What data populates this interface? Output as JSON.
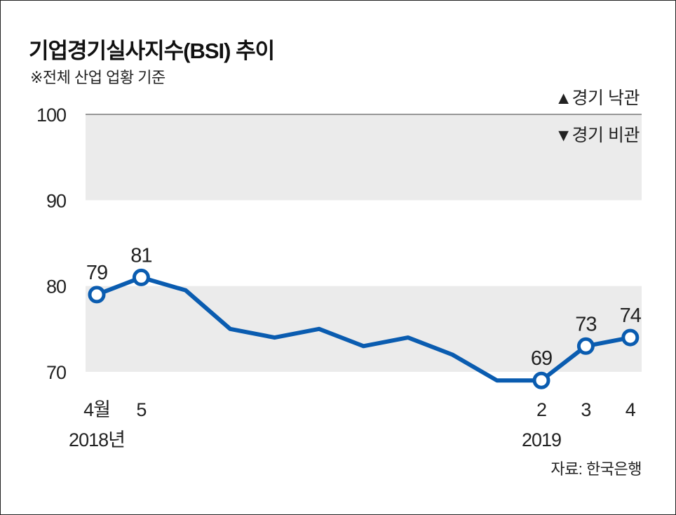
{
  "title": "기업경기실사지수(BSI) 추이",
  "subtitle": "※전체 산업 업황 기준",
  "source": "자료: 한국은행",
  "colors": {
    "line": "#0a5cb0",
    "band": "#ebebeb",
    "marker_fill": "#ffffff"
  },
  "chart_data": {
    "type": "line",
    "ylim": [
      70,
      100
    ],
    "yticks": [
      70,
      80,
      90,
      100
    ],
    "x": [
      "2018-04",
      "2018-05",
      "2018-06",
      "2018-07",
      "2018-08",
      "2018-09",
      "2018-10",
      "2018-11",
      "2018-12",
      "2019-01",
      "2019-02",
      "2019-03",
      "2019-04"
    ],
    "series": [
      {
        "values": [
          79,
          81,
          79.5,
          75,
          74,
          75,
          73,
          74,
          72,
          69,
          69,
          73,
          74
        ]
      }
    ],
    "x_tick_labels": [
      {
        "index": 0,
        "label": "4월",
        "year": "2018년"
      },
      {
        "index": 1,
        "label": "5",
        "year": ""
      },
      {
        "index": 10,
        "label": "2",
        "year": "2019"
      },
      {
        "index": 11,
        "label": "3",
        "year": ""
      },
      {
        "index": 12,
        "label": "4",
        "year": ""
      }
    ],
    "data_labels": [
      {
        "index": 0,
        "text": "79"
      },
      {
        "index": 1,
        "text": "81"
      },
      {
        "index": 10,
        "text": "69"
      },
      {
        "index": 11,
        "text": "73"
      },
      {
        "index": 12,
        "text": "74"
      }
    ],
    "bands": [
      {
        "from": 90,
        "to": 100
      },
      {
        "from": 70,
        "to": 80
      }
    ],
    "legend": [
      {
        "symbol": "▲",
        "text": "경기 낙관"
      },
      {
        "symbol": "▼",
        "text": "경기 비관"
      }
    ],
    "grid": false
  }
}
